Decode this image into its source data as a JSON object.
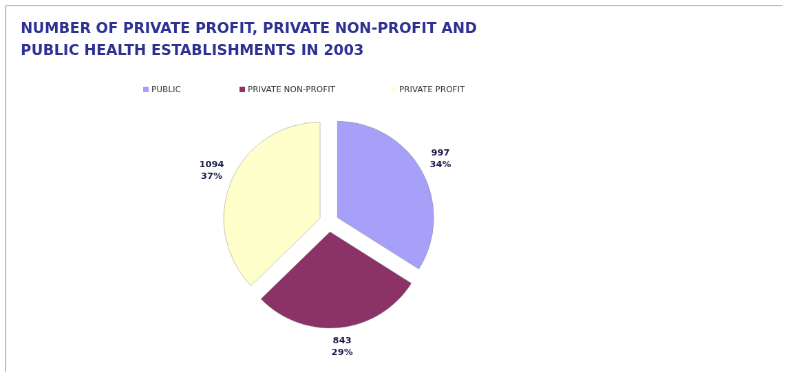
{
  "chart_data": {
    "type": "pie",
    "title": "NUMBER OF PRIVATE PROFIT, PRIVATE NON-PROFIT AND PUBLIC HEALTH ESTABLISHMENTS IN 2003",
    "categories": [
      "PUBLIC",
      "PRIVATE NON-PROFIT",
      "PRIVATE PROFIT"
    ],
    "values": [
      997,
      843,
      1094
    ],
    "colors": [
      "#a6a0f8",
      "#8b3366",
      "#ffffcc"
    ],
    "value_labels": [
      "997\n34%",
      "843\n29%",
      "1094\n37%"
    ],
    "legend": "top"
  }
}
